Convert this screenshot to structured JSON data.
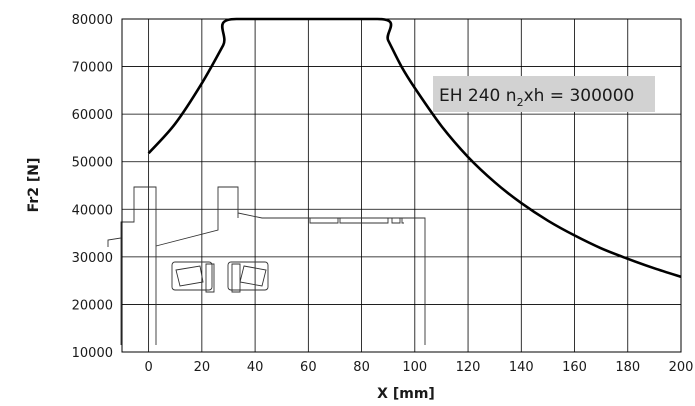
{
  "chart_data": {
    "type": "line",
    "title": "",
    "xlabel": "X [mm]",
    "ylabel": "Fr2 [N]",
    "xlim": [
      -10,
      200
    ],
    "ylim": [
      10000,
      80000
    ],
    "x_ticks": [
      0,
      20,
      40,
      60,
      80,
      100,
      120,
      140,
      160,
      180,
      200
    ],
    "y_ticks": [
      10000,
      20000,
      30000,
      40000,
      50000,
      60000,
      70000,
      80000
    ],
    "grid": true,
    "series": [
      {
        "x": [
          0,
          10,
          20,
          28,
          33,
          86,
          90,
          95,
          100,
          110,
          120,
          130,
          140,
          150,
          160,
          170,
          180,
          190,
          200
        ],
        "y": [
          51800,
          58000,
          66500,
          74500,
          80000,
          80000,
          75500,
          70000,
          65500,
          57500,
          51000,
          45700,
          41300,
          37600,
          34500,
          31800,
          29600,
          27600,
          25800
        ],
        "color": "#000000"
      }
    ],
    "annotation": {
      "prefix": "EH 240 n",
      "subscript": "2",
      "suffix": "xh = 300000",
      "background": "#d2d2d2"
    }
  }
}
